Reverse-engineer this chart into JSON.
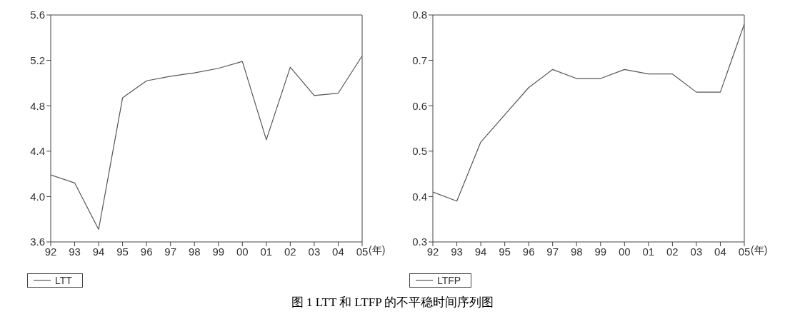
{
  "chart_data": [
    {
      "type": "line",
      "xlabel": "(年)",
      "categories": [
        "92",
        "93",
        "94",
        "95",
        "96",
        "97",
        "98",
        "99",
        "00",
        "01",
        "02",
        "03",
        "04",
        "05"
      ],
      "series": [
        {
          "name": "LTT",
          "color": "#555555",
          "values": [
            4.19,
            4.12,
            3.71,
            4.87,
            5.02,
            5.06,
            5.09,
            5.13,
            5.19,
            4.5,
            5.14,
            4.89,
            4.91,
            5.24
          ]
        }
      ],
      "ylim": [
        3.6,
        5.6
      ],
      "yticks": [
        {
          "value": 3.6,
          "label": "3.6"
        },
        {
          "value": 4,
          "label": "4.0"
        },
        {
          "value": 4.4,
          "label": "4.4"
        },
        {
          "value": 4.8,
          "label": "4.8"
        },
        {
          "value": 5.2,
          "label": "5.2"
        },
        {
          "value": 5.6,
          "label": "5.6"
        }
      ],
      "legend": "bottom left",
      "grid": false,
      "marker": "none",
      "line_style": "solid",
      "annotations": [
        "图 1 LTT 和 LTFP 的不平稳时间序列图"
      ]
    },
    {
      "type": "line",
      "xlabel": "(年)",
      "categories": [
        "92",
        "93",
        "94",
        "95",
        "96",
        "97",
        "98",
        "99",
        "00",
        "01",
        "02",
        "03",
        "04",
        "05"
      ],
      "series": [
        {
          "name": "LTFP",
          "color": "#555555",
          "values": [
            0.41,
            0.39,
            0.52,
            0.58,
            0.64,
            0.68,
            0.66,
            0.66,
            0.68,
            0.67,
            0.67,
            0.63,
            0.63,
            0.78
          ]
        }
      ],
      "ylim": [
        0.3,
        0.8
      ],
      "yticks": [
        {
          "value": 0.3,
          "label": "0.3"
        },
        {
          "value": 0.4,
          "label": "0.4"
        },
        {
          "value": 0.5,
          "label": "0.5"
        },
        {
          "value": 0.6,
          "label": "0.6"
        },
        {
          "value": 0.7,
          "label": "0.7"
        },
        {
          "value": 0.8,
          "label": "0.8"
        }
      ],
      "legend": "bottom left",
      "grid": false,
      "marker": "none",
      "line_style": "solid"
    }
  ]
}
